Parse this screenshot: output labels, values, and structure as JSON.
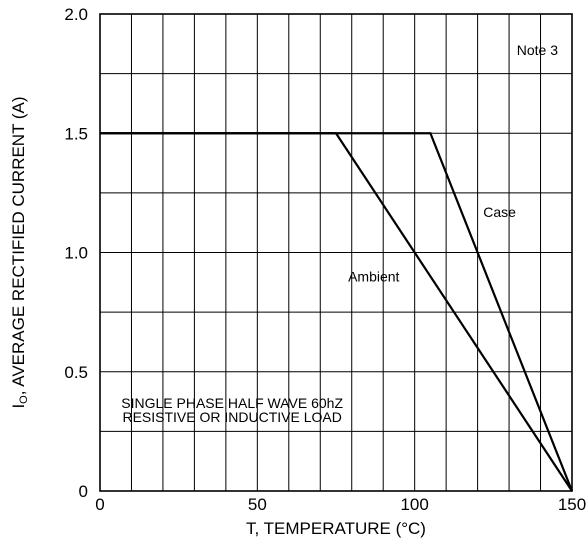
{
  "chart_data": {
    "type": "line",
    "title": "",
    "xlabel": "T, TEMPERATURE (°C)",
    "ylabel_main": "I",
    "ylabel_sub": "O",
    "ylabel_rest": ", AVERAGE RECTIFIED CURRENT (A)",
    "xlim": [
      0,
      150
    ],
    "ylim": [
      0,
      2.0
    ],
    "x_ticks": [
      {
        "value": 0,
        "label": "0"
      },
      {
        "value": 50,
        "label": "50"
      },
      {
        "value": 100,
        "label": "100"
      },
      {
        "value": 150,
        "label": "150"
      }
    ],
    "y_ticks": [
      {
        "value": 0,
        "label": "0"
      },
      {
        "value": 0.5,
        "label": "0.5"
      },
      {
        "value": 1.0,
        "label": "1.0"
      },
      {
        "value": 1.5,
        "label": "1.5"
      },
      {
        "value": 2.0,
        "label": "2.0"
      }
    ],
    "grid": {
      "x_step": 10,
      "y_step": 0.25
    },
    "series": [
      {
        "name": "Case",
        "x": [
          0,
          105,
          150
        ],
        "y": [
          1.5,
          1.5,
          0
        ]
      },
      {
        "name": "Ambient",
        "x": [
          0,
          75,
          150
        ],
        "y": [
          1.5,
          1.5,
          0
        ]
      }
    ],
    "series_labels": [
      {
        "text": "Case",
        "x": 127,
        "y": 1.17
      },
      {
        "text": "Ambient",
        "x": 87,
        "y": 0.9
      }
    ],
    "annotations": [
      {
        "text": "Note 3",
        "x": 139,
        "y": 1.85
      },
      {
        "text": "SINGLE PHASE HALF WAVE 60hZ",
        "x": 42,
        "y": 0.37
      },
      {
        "text": "RESISTIVE OR INDUCTIVE LOAD",
        "x": 42,
        "y": 0.31
      }
    ]
  }
}
